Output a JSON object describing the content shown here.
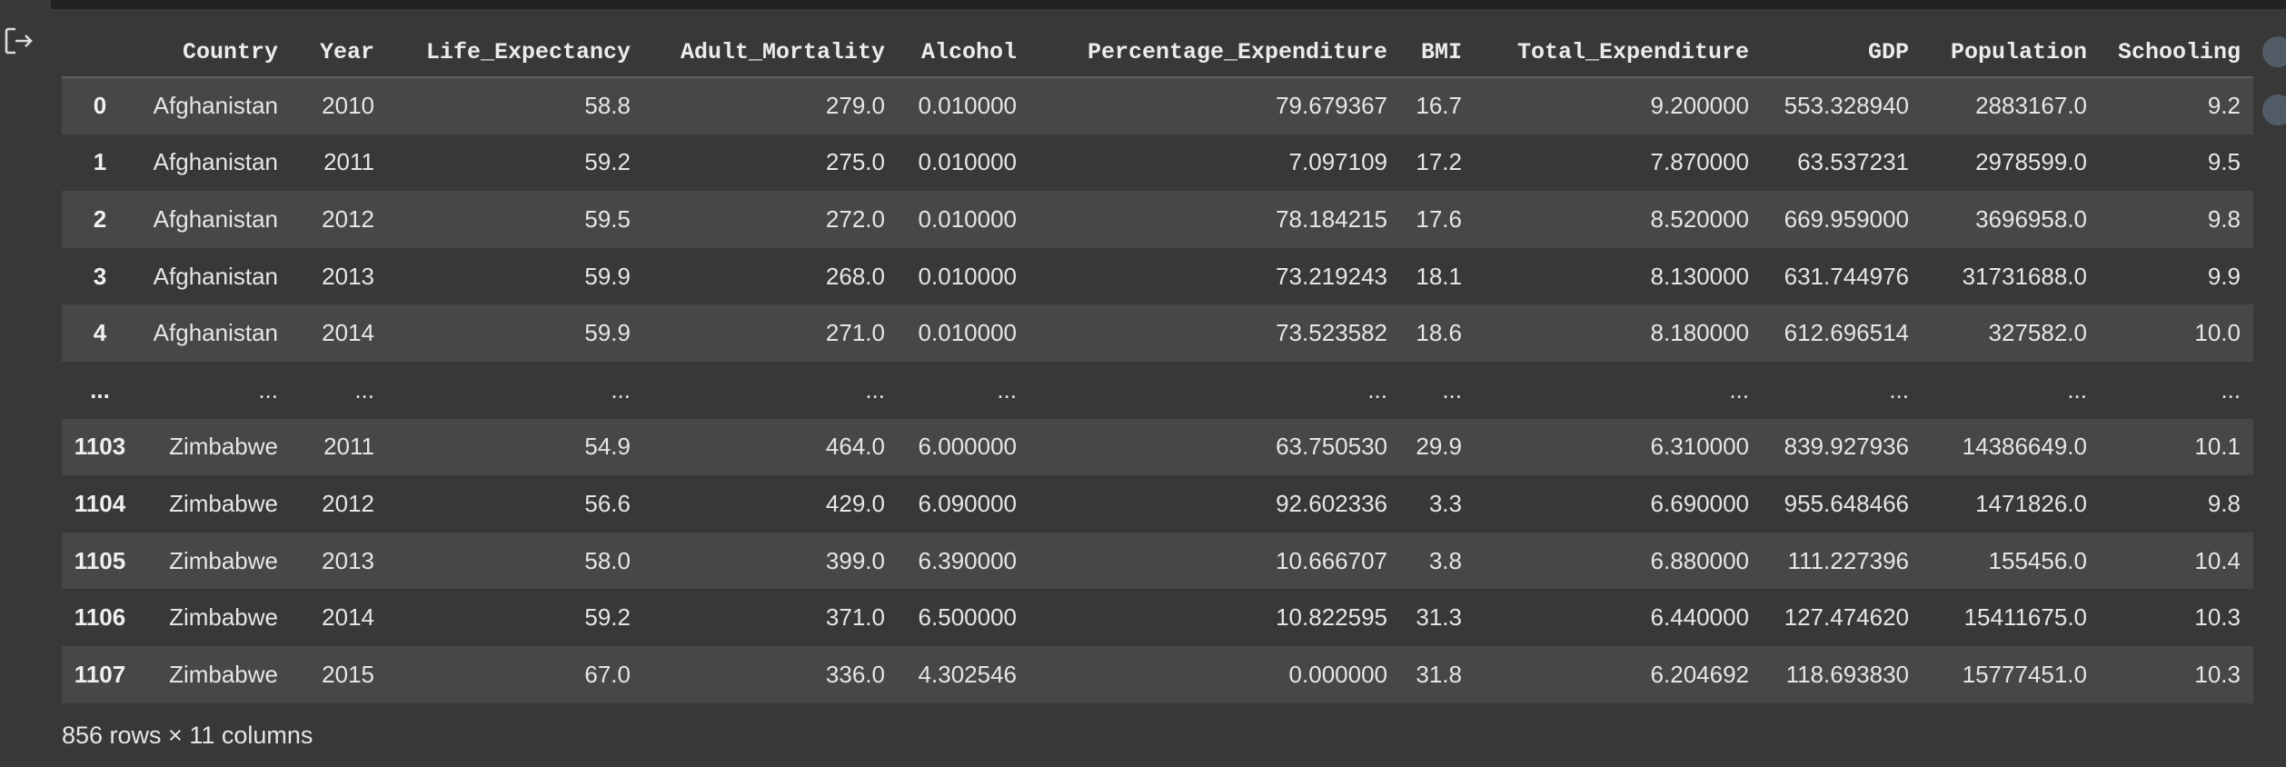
{
  "table": {
    "columns": [
      "Country",
      "Year",
      "Life_Expectancy",
      "Adult_Mortality",
      "Alcohol",
      "Percentage_Expenditure",
      "BMI",
      "Total_Expenditure",
      "GDP",
      "Population",
      "Schooling"
    ],
    "rows": [
      {
        "index": "0",
        "cells": [
          "Afghanistan",
          "2010",
          "58.8",
          "279.0",
          "0.010000",
          "79.679367",
          "16.7",
          "9.200000",
          "553.328940",
          "2883167.0",
          "9.2"
        ]
      },
      {
        "index": "1",
        "cells": [
          "Afghanistan",
          "2011",
          "59.2",
          "275.0",
          "0.010000",
          "7.097109",
          "17.2",
          "7.870000",
          "63.537231",
          "2978599.0",
          "9.5"
        ]
      },
      {
        "index": "2",
        "cells": [
          "Afghanistan",
          "2012",
          "59.5",
          "272.0",
          "0.010000",
          "78.184215",
          "17.6",
          "8.520000",
          "669.959000",
          "3696958.0",
          "9.8"
        ]
      },
      {
        "index": "3",
        "cells": [
          "Afghanistan",
          "2013",
          "59.9",
          "268.0",
          "0.010000",
          "73.219243",
          "18.1",
          "8.130000",
          "631.744976",
          "31731688.0",
          "9.9"
        ]
      },
      {
        "index": "4",
        "cells": [
          "Afghanistan",
          "2014",
          "59.9",
          "271.0",
          "0.010000",
          "73.523582",
          "18.6",
          "8.180000",
          "612.696514",
          "327582.0",
          "10.0"
        ]
      },
      {
        "index": "...",
        "cells": [
          "...",
          "...",
          "...",
          "...",
          "...",
          "...",
          "...",
          "...",
          "...",
          "...",
          "..."
        ]
      },
      {
        "index": "1103",
        "cells": [
          "Zimbabwe",
          "2011",
          "54.9",
          "464.0",
          "6.000000",
          "63.750530",
          "29.9",
          "6.310000",
          "839.927936",
          "14386649.0",
          "10.1"
        ]
      },
      {
        "index": "1104",
        "cells": [
          "Zimbabwe",
          "2012",
          "56.6",
          "429.0",
          "6.090000",
          "92.602336",
          "3.3",
          "6.690000",
          "955.648466",
          "1471826.0",
          "9.8"
        ]
      },
      {
        "index": "1105",
        "cells": [
          "Zimbabwe",
          "2013",
          "58.0",
          "399.0",
          "6.390000",
          "10.666707",
          "3.8",
          "6.880000",
          "111.227396",
          "155456.0",
          "10.4"
        ]
      },
      {
        "index": "1106",
        "cells": [
          "Zimbabwe",
          "2014",
          "59.2",
          "371.0",
          "6.500000",
          "10.822595",
          "31.3",
          "6.440000",
          "127.474620",
          "15411675.0",
          "10.3"
        ]
      },
      {
        "index": "1107",
        "cells": [
          "Zimbabwe",
          "2015",
          "67.0",
          "336.0",
          "4.302546",
          "0.000000",
          "31.8",
          "6.204692",
          "118.693830",
          "15777451.0",
          "10.3"
        ]
      }
    ],
    "shape_text": "856 rows × 11 columns"
  },
  "icons": {
    "side": "open-output-icon"
  },
  "colors": {
    "background": "#383838",
    "stripe": "#474747",
    "text": "#e6e6e6"
  }
}
